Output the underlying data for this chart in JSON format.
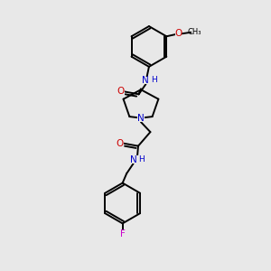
{
  "background_color": "#e8e8e8",
  "bond_color": "#000000",
  "N_color": "#0000cc",
  "O_color": "#cc0000",
  "F_color": "#cc00cc",
  "figsize": [
    3.0,
    3.0
  ],
  "dpi": 100,
  "xlim": [
    0,
    10
  ],
  "ylim": [
    0,
    10
  ]
}
